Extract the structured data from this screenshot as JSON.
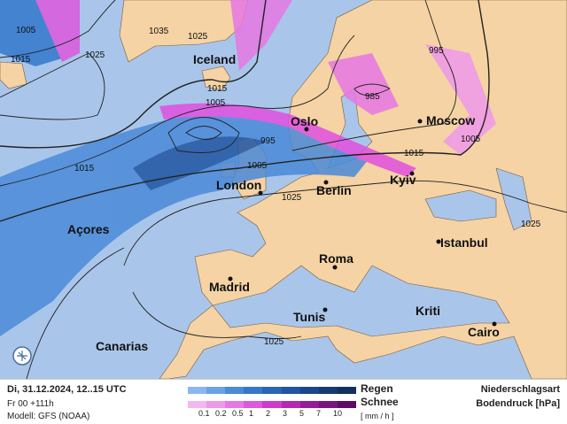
{
  "map": {
    "cities": [
      "Iceland",
      "Oslo",
      "Moscow",
      "London",
      "Berlin",
      "Kyiv",
      "Açores",
      "Istanbul",
      "Roma",
      "Madrid",
      "Kriti",
      "Tunis",
      "Cairo",
      "Canarias"
    ],
    "isobar_labels": [
      "1005",
      "1015",
      "1035",
      "1025",
      "1025",
      "1015",
      "1005",
      "995",
      "1005",
      "995",
      "985",
      "1005",
      "1015",
      "1025",
      "1025",
      "1025",
      "1015"
    ],
    "colors": {
      "ocean": "#a9c6ea",
      "land": "#f5d3a4",
      "rain": "#2a6cc8",
      "snow": "#e050e0"
    }
  },
  "footer": {
    "datetime": "Di, 31.12.2024, 12..15 UTC",
    "run": "Fr 00 +111h",
    "model": "Modell: GFS (NOAA)",
    "rain_label": "Regen",
    "snow_label": "Schnee",
    "unit": "[ mm / h ]",
    "scale_ticks": [
      "0.1",
      "0.2",
      "0.5",
      "1",
      "2",
      "3",
      "5",
      "7",
      "10"
    ],
    "title1": "Niederschlagsart",
    "title2": "Bodendruck [hPa]",
    "rain_colors": [
      "#8ab8ee",
      "#6aa2e6",
      "#4a8ad8",
      "#3378cc",
      "#2766b8",
      "#1f55a2",
      "#1a468a",
      "#163a72",
      "#12305e"
    ],
    "snow_colors": [
      "#f4b8f0",
      "#ee98ea",
      "#e678e4",
      "#dc58dc",
      "#cc3ccc",
      "#b22ab4",
      "#951c98",
      "#7a127e",
      "#5e0a62"
    ]
  }
}
